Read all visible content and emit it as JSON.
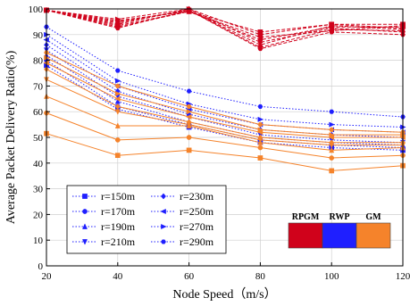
{
  "chart_data": {
    "type": "line",
    "title": "",
    "xlabel": "Node Speed（m/s）",
    "ylabel": "Average Packet Delivery Ratio(%)",
    "x": [
      20,
      40,
      60,
      80,
      100,
      120
    ],
    "xlim": [
      20,
      120
    ],
    "ylim": [
      0,
      100
    ],
    "x_ticks": [
      "20",
      "40",
      "60",
      "80",
      "100",
      "120"
    ],
    "y_ticks": [
      "0",
      "10",
      "20",
      "30",
      "40",
      "50",
      "60",
      "70",
      "80",
      "90",
      "100"
    ],
    "grid": true,
    "legend_position": "bottom-left",
    "legend": [
      {
        "label": "r=150m",
        "marker": "square"
      },
      {
        "label": "r=230m",
        "marker": "diamond"
      },
      {
        "label": "r=170m",
        "marker": "circle"
      },
      {
        "label": "r=250m",
        "marker": "triangle-left"
      },
      {
        "label": "r=190m",
        "marker": "triangle-up"
      },
      {
        "label": "r=270m",
        "marker": "triangle-right"
      },
      {
        "label": "r=210m",
        "marker": "triangle-down"
      },
      {
        "label": "r=290m",
        "marker": "hexagon"
      }
    ],
    "protocol_legend": [
      {
        "label": "RPGM",
        "color": "#d0021b"
      },
      {
        "label": "RWP",
        "color": "#1f1fff"
      },
      {
        "label": "GM",
        "color": "#f5832b"
      }
    ],
    "series": [
      {
        "group": "RPGM",
        "radius": "r=150m",
        "marker": "square",
        "values": [
          99.5,
          93.5,
          99,
          91,
          94,
          94
        ]
      },
      {
        "group": "RPGM",
        "radius": "r=170m",
        "marker": "circle",
        "values": [
          99.5,
          93,
          99,
          88,
          93,
          93
        ]
      },
      {
        "group": "RPGM",
        "radius": "r=190m",
        "marker": "triangle-up",
        "values": [
          99.5,
          95,
          99.5,
          86,
          93.5,
          92
        ]
      },
      {
        "group": "RPGM",
        "radius": "r=210m",
        "marker": "triangle-down",
        "values": [
          99.5,
          94.5,
          99.5,
          85,
          92,
          91.5
        ]
      },
      {
        "group": "RPGM",
        "radius": "r=230m",
        "marker": "diamond",
        "values": [
          99.5,
          94,
          100,
          87,
          92.5,
          91
        ]
      },
      {
        "group": "RPGM",
        "radius": "r=250m",
        "marker": "triangle-left",
        "values": [
          99.5,
          95.5,
          99,
          89,
          91.5,
          93.5
        ]
      },
      {
        "group": "RPGM",
        "radius": "r=270m",
        "marker": "triangle-right",
        "values": [
          99.5,
          96,
          100,
          90,
          94,
          92.5
        ]
      },
      {
        "group": "RPGM",
        "radius": "r=290m",
        "marker": "hexagon",
        "values": [
          99.5,
          92.5,
          99.5,
          84.5,
          91,
          90
        ]
      },
      {
        "group": "RWP",
        "radius": "r=150m",
        "marker": "square",
        "values": [
          78,
          61,
          54,
          48,
          46,
          45
        ]
      },
      {
        "group": "RWP",
        "radius": "r=170m",
        "marker": "circle",
        "values": [
          80,
          62,
          55,
          49,
          47,
          46
        ]
      },
      {
        "group": "RWP",
        "radius": "r=190m",
        "marker": "triangle-up",
        "values": [
          82,
          64,
          56,
          50,
          48,
          47
        ]
      },
      {
        "group": "RWP",
        "radius": "r=210m",
        "marker": "triangle-down",
        "values": [
          84,
          66,
          58,
          51,
          49,
          48
        ]
      },
      {
        "group": "RWP",
        "radius": "r=230m",
        "marker": "diamond",
        "values": [
          86,
          68,
          59,
          53,
          51,
          50
        ]
      },
      {
        "group": "RWP",
        "radius": "r=250m",
        "marker": "triangle-left",
        "values": [
          88,
          70,
          61,
          55,
          53,
          52
        ]
      },
      {
        "group": "RWP",
        "radius": "r=270m",
        "marker": "triangle-right",
        "values": [
          90,
          72,
          63,
          57,
          55,
          54
        ]
      },
      {
        "group": "RWP",
        "radius": "r=290m",
        "marker": "hexagon",
        "values": [
          93,
          76,
          68,
          62,
          60,
          58
        ]
      },
      {
        "group": "GM",
        "radius": "r=150m",
        "marker": "square",
        "values": [
          51.5,
          43,
          45,
          42,
          37,
          39
        ]
      },
      {
        "group": "GM",
        "radius": "r=170m",
        "marker": "circle",
        "values": [
          59.5,
          49,
          50,
          46,
          42,
          43
        ]
      },
      {
        "group": "GM",
        "radius": "r=190m",
        "marker": "triangle-up",
        "values": [
          66,
          54.5,
          54.5,
          48,
          45,
          46
        ]
      },
      {
        "group": "GM",
        "radius": "r=210m",
        "marker": "triangle-down",
        "values": [
          72.5,
          60,
          55,
          49,
          47,
          47
        ]
      },
      {
        "group": "GM",
        "radius": "r=230m",
        "marker": "diamond",
        "values": [
          76.5,
          62,
          56,
          50,
          48,
          48
        ]
      },
      {
        "group": "GM",
        "radius": "r=250m",
        "marker": "triangle-left",
        "values": [
          79,
          65,
          58,
          52,
          50,
          50
        ]
      },
      {
        "group": "GM",
        "radius": "r=270m",
        "marker": "triangle-right",
        "values": [
          81,
          67,
          60,
          53,
          51,
          51
        ]
      },
      {
        "group": "GM",
        "radius": "r=290m",
        "marker": "hexagon",
        "values": [
          83,
          70,
          62,
          55,
          53,
          52
        ]
      }
    ]
  }
}
